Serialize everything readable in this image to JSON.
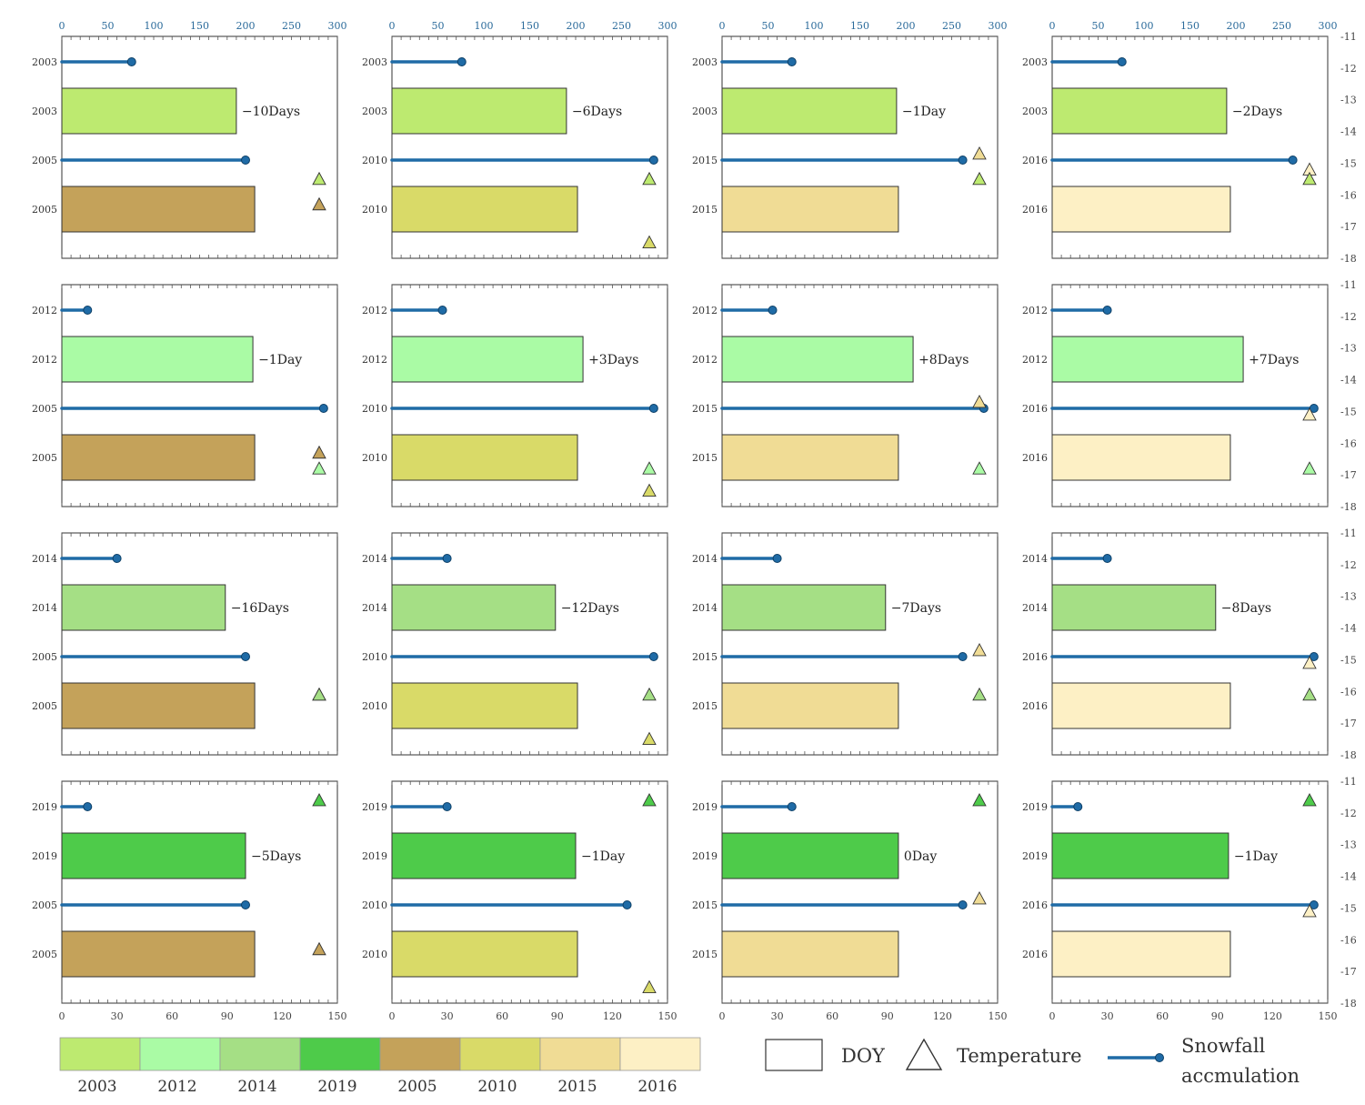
{
  "chart_data": {
    "type": "bar",
    "top_axis": {
      "ticks": [
        0,
        50,
        100,
        150,
        200,
        250,
        300
      ],
      "range": [
        0,
        300
      ]
    },
    "bottom_axis": {
      "ticks": [
        0,
        30,
        60,
        90,
        120,
        150
      ],
      "range": [
        0,
        150
      ]
    },
    "right_axis": {
      "ticks": [
        -11,
        -12,
        -13,
        -14,
        -15,
        -16,
        -17,
        -18
      ],
      "range": [
        -18,
        -11
      ]
    },
    "legend": {
      "years": [
        {
          "year": "2003",
          "color": "#bdea70"
        },
        {
          "year": "2012",
          "color": "#aafba5"
        },
        {
          "year": "2014",
          "color": "#a5df85"
        },
        {
          "year": "2019",
          "color": "#4ecb4a"
        },
        {
          "year": "2005",
          "color": "#c4a25a"
        },
        {
          "year": "2010",
          "color": "#d9da68"
        },
        {
          "year": "2015",
          "color": "#f0dc95"
        },
        {
          "year": "2016",
          "color": "#fdf0c5"
        }
      ],
      "doy_label": "DOY",
      "temperature_label": "Temperature",
      "snowfall_label_line1": "Snowfall",
      "snowfall_label_line2": "accmulation"
    },
    "panels": [
      {
        "rows": [
          {
            "label": "2003",
            "type": "line",
            "value": 76
          },
          {
            "label": "2003",
            "type": "bar",
            "doy": 95,
            "color": "#bdea70"
          },
          {
            "label": "2005",
            "type": "line",
            "value": 200
          },
          {
            "label": "2005",
            "type": "bar",
            "doy": 105,
            "color": "#c4a25a"
          }
        ],
        "delta": "−10Days",
        "temps": [
          {
            "value": -15.5,
            "color": "#bdea70"
          },
          {
            "value": -16.3,
            "color": "#c4a25a"
          }
        ]
      },
      {
        "rows": [
          {
            "label": "2003",
            "type": "line",
            "value": 76
          },
          {
            "label": "2003",
            "type": "bar",
            "doy": 95,
            "color": "#bdea70"
          },
          {
            "label": "2010",
            "type": "line",
            "value": 285
          },
          {
            "label": "2010",
            "type": "bar",
            "doy": 101,
            "color": "#d9da68"
          }
        ],
        "delta": "−6Days",
        "temps": [
          {
            "value": -15.5,
            "color": "#bdea70"
          },
          {
            "value": -17.5,
            "color": "#d9da68"
          }
        ]
      },
      {
        "rows": [
          {
            "label": "2003",
            "type": "line",
            "value": 76
          },
          {
            "label": "2003",
            "type": "bar",
            "doy": 95,
            "color": "#bdea70"
          },
          {
            "label": "2015",
            "type": "line",
            "value": 262
          },
          {
            "label": "2015",
            "type": "bar",
            "doy": 96,
            "color": "#f0dc95"
          }
        ],
        "delta": "−1Day",
        "temps": [
          {
            "value": -14.7,
            "color": "#f0dc95"
          },
          {
            "value": -15.5,
            "color": "#bdea70"
          }
        ]
      },
      {
        "rows": [
          {
            "label": "2003",
            "type": "line",
            "value": 76
          },
          {
            "label": "2003",
            "type": "bar",
            "doy": 95,
            "color": "#bdea70"
          },
          {
            "label": "2016",
            "type": "line",
            "value": 262
          },
          {
            "label": "2016",
            "type": "bar",
            "doy": 97,
            "color": "#fdf0c5"
          }
        ],
        "delta": "−2Days",
        "temps": [
          {
            "value": -15.2,
            "color": "#fdf0c5"
          },
          {
            "value": -15.5,
            "color": "#bdea70"
          }
        ]
      },
      {
        "rows": [
          {
            "label": "2012",
            "type": "line",
            "value": 28
          },
          {
            "label": "2012",
            "type": "bar",
            "doy": 104,
            "color": "#aafba5"
          },
          {
            "label": "2005",
            "type": "line",
            "value": 285
          },
          {
            "label": "2005",
            "type": "bar",
            "doy": 105,
            "color": "#c4a25a"
          }
        ],
        "delta": "−1Day",
        "temps": [
          {
            "value": -16.3,
            "color": "#c4a25a"
          },
          {
            "value": -16.8,
            "color": "#aafba5"
          }
        ]
      },
      {
        "rows": [
          {
            "label": "2012",
            "type": "line",
            "value": 55
          },
          {
            "label": "2012",
            "type": "bar",
            "doy": 104,
            "color": "#aafba5"
          },
          {
            "label": "2010",
            "type": "line",
            "value": 285
          },
          {
            "label": "2010",
            "type": "bar",
            "doy": 101,
            "color": "#d9da68"
          }
        ],
        "delta": "+3Days",
        "temps": [
          {
            "value": -16.8,
            "color": "#aafba5"
          },
          {
            "value": -17.5,
            "color": "#d9da68"
          }
        ]
      },
      {
        "rows": [
          {
            "label": "2012",
            "type": "line",
            "value": 55
          },
          {
            "label": "2012",
            "type": "bar",
            "doy": 104,
            "color": "#aafba5"
          },
          {
            "label": "2015",
            "type": "line",
            "value": 285
          },
          {
            "label": "2015",
            "type": "bar",
            "doy": 96,
            "color": "#f0dc95"
          }
        ],
        "delta": "+8Days",
        "temps": [
          {
            "value": -14.7,
            "color": "#f0dc95"
          },
          {
            "value": -16.8,
            "color": "#aafba5"
          }
        ]
      },
      {
        "rows": [
          {
            "label": "2012",
            "type": "line",
            "value": 60
          },
          {
            "label": "2012",
            "type": "bar",
            "doy": 104,
            "color": "#aafba5"
          },
          {
            "label": "2016",
            "type": "line",
            "value": 285
          },
          {
            "label": "2016",
            "type": "bar",
            "doy": 97,
            "color": "#fdf0c5"
          }
        ],
        "delta": "+7Days",
        "temps": [
          {
            "value": -15.1,
            "color": "#fdf0c5"
          },
          {
            "value": -16.8,
            "color": "#aafba5"
          }
        ]
      },
      {
        "rows": [
          {
            "label": "2014",
            "type": "line",
            "value": 60
          },
          {
            "label": "2014",
            "type": "bar",
            "doy": 89,
            "color": "#a5df85"
          },
          {
            "label": "2005",
            "type": "line",
            "value": 200
          },
          {
            "label": "2005",
            "type": "bar",
            "doy": 105,
            "color": "#c4a25a"
          }
        ],
        "delta": "−16Days",
        "temps": [
          {
            "value": -16.1,
            "color": "#c4a25a"
          },
          {
            "value": -16.1,
            "color": "#a5df85"
          }
        ]
      },
      {
        "rows": [
          {
            "label": "2014",
            "type": "line",
            "value": 60
          },
          {
            "label": "2014",
            "type": "bar",
            "doy": 89,
            "color": "#a5df85"
          },
          {
            "label": "2010",
            "type": "line",
            "value": 285
          },
          {
            "label": "2010",
            "type": "bar",
            "doy": 101,
            "color": "#d9da68"
          }
        ],
        "delta": "−12Days",
        "temps": [
          {
            "value": -16.1,
            "color": "#a5df85"
          },
          {
            "value": -17.5,
            "color": "#d9da68"
          }
        ]
      },
      {
        "rows": [
          {
            "label": "2014",
            "type": "line",
            "value": 60
          },
          {
            "label": "2014",
            "type": "bar",
            "doy": 89,
            "color": "#a5df85"
          },
          {
            "label": "2015",
            "type": "line",
            "value": 262
          },
          {
            "label": "2015",
            "type": "bar",
            "doy": 96,
            "color": "#f0dc95"
          }
        ],
        "delta": "−7Days",
        "temps": [
          {
            "value": -14.7,
            "color": "#f0dc95"
          },
          {
            "value": -16.1,
            "color": "#a5df85"
          }
        ]
      },
      {
        "rows": [
          {
            "label": "2014",
            "type": "line",
            "value": 60
          },
          {
            "label": "2014",
            "type": "bar",
            "doy": 89,
            "color": "#a5df85"
          },
          {
            "label": "2016",
            "type": "line",
            "value": 285
          },
          {
            "label": "2016",
            "type": "bar",
            "doy": 97,
            "color": "#fdf0c5"
          }
        ],
        "delta": "−8Days",
        "temps": [
          {
            "value": -15.1,
            "color": "#fdf0c5"
          },
          {
            "value": -16.1,
            "color": "#a5df85"
          }
        ]
      },
      {
        "rows": [
          {
            "label": "2019",
            "type": "line",
            "value": 28
          },
          {
            "label": "2019",
            "type": "bar",
            "doy": 100,
            "color": "#4ecb4a"
          },
          {
            "label": "2005",
            "type": "line",
            "value": 200
          },
          {
            "label": "2005",
            "type": "bar",
            "doy": 105,
            "color": "#c4a25a"
          }
        ],
        "delta": "−5Days",
        "temps": [
          {
            "value": -11.6,
            "color": "#4ecb4a"
          },
          {
            "value": -16.3,
            "color": "#c4a25a"
          }
        ]
      },
      {
        "rows": [
          {
            "label": "2019",
            "type": "line",
            "value": 60
          },
          {
            "label": "2019",
            "type": "bar",
            "doy": 100,
            "color": "#4ecb4a"
          },
          {
            "label": "2010",
            "type": "line",
            "value": 256
          },
          {
            "label": "2010",
            "type": "bar",
            "doy": 101,
            "color": "#d9da68"
          }
        ],
        "delta": "−1Day",
        "temps": [
          {
            "value": -11.6,
            "color": "#4ecb4a"
          },
          {
            "value": -17.5,
            "color": "#d9da68"
          }
        ]
      },
      {
        "rows": [
          {
            "label": "2019",
            "type": "line",
            "value": 76
          },
          {
            "label": "2019",
            "type": "bar",
            "doy": 96,
            "color": "#4ecb4a"
          },
          {
            "label": "2015",
            "type": "line",
            "value": 262
          },
          {
            "label": "2015",
            "type": "bar",
            "doy": 96,
            "color": "#f0dc95"
          }
        ],
        "delta": "0Day",
        "temps": [
          {
            "value": -11.6,
            "color": "#4ecb4a"
          },
          {
            "value": -14.7,
            "color": "#f0dc95"
          }
        ]
      },
      {
        "rows": [
          {
            "label": "2019",
            "type": "line",
            "value": 28
          },
          {
            "label": "2019",
            "type": "bar",
            "doy": 96,
            "color": "#4ecb4a"
          },
          {
            "label": "2016",
            "type": "line",
            "value": 285
          },
          {
            "label": "2016",
            "type": "bar",
            "doy": 97,
            "color": "#fdf0c5"
          }
        ],
        "delta": "−1Day",
        "temps": [
          {
            "value": -11.6,
            "color": "#4ecb4a"
          },
          {
            "value": -15.1,
            "color": "#fdf0c5"
          }
        ]
      }
    ]
  }
}
